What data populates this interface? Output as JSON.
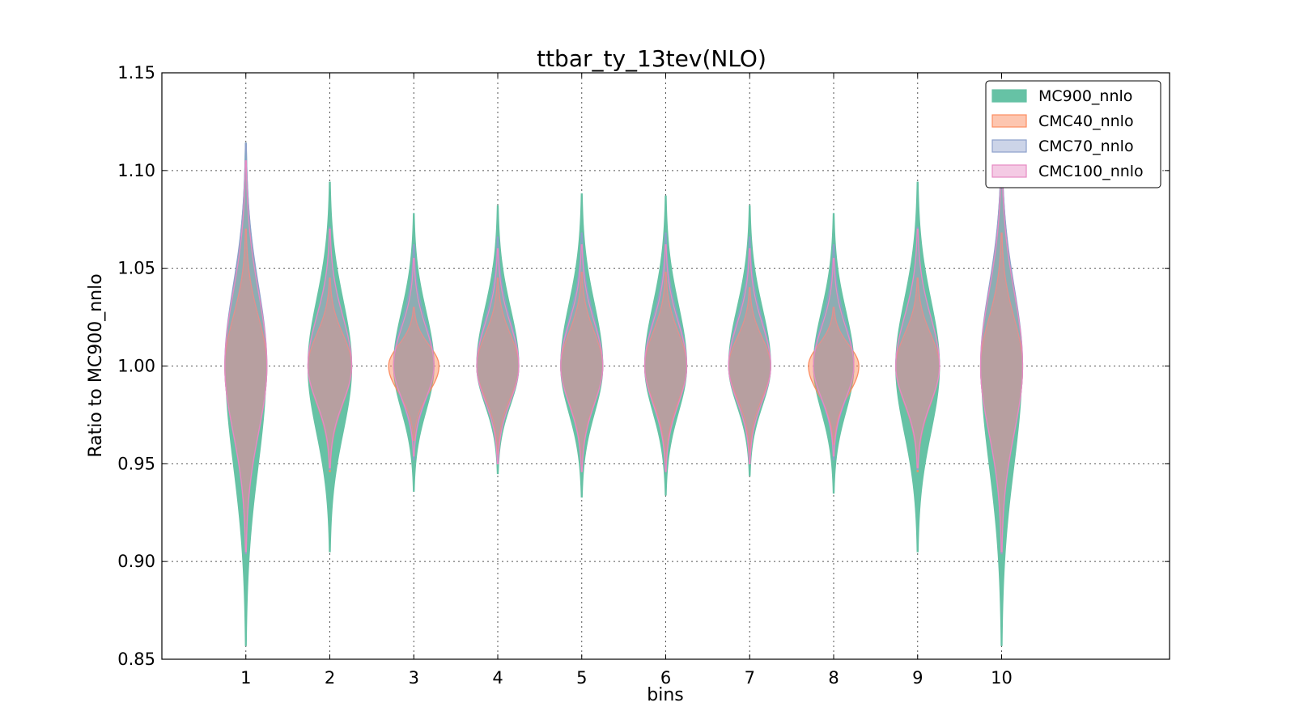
{
  "chart_data": {
    "type": "violin",
    "title": "ttbar_ty_13tev(NLO)",
    "xlabel": "bins",
    "ylabel": "Ratio to MC900_nnlo",
    "categories": [
      "1",
      "2",
      "3",
      "4",
      "5",
      "6",
      "7",
      "8",
      "9",
      "10"
    ],
    "xlim": [
      0,
      12
    ],
    "ylim": [
      0.85,
      1.15
    ],
    "yticks": [
      "0.85",
      "0.90",
      "0.95",
      "1.00",
      "1.05",
      "1.10",
      "1.15"
    ],
    "grid": true,
    "legend_position": "top-right",
    "series": [
      {
        "name": "MC900_nnlo",
        "color": "#66c2a5",
        "alpha": 1.0,
        "stats": [
          {
            "min": 0.857,
            "max": 1.114,
            "w": 0.48
          },
          {
            "min": 0.905,
            "max": 1.094,
            "w": 0.52
          },
          {
            "min": 0.936,
            "max": 1.078,
            "w": 0.48
          },
          {
            "min": 0.945,
            "max": 1.082,
            "w": 0.5
          },
          {
            "min": 0.933,
            "max": 1.088,
            "w": 0.5
          },
          {
            "min": 0.934,
            "max": 1.087,
            "w": 0.5
          },
          {
            "min": 0.944,
            "max": 1.082,
            "w": 0.5
          },
          {
            "min": 0.935,
            "max": 1.078,
            "w": 0.48
          },
          {
            "min": 0.905,
            "max": 1.094,
            "w": 0.52
          },
          {
            "min": 0.857,
            "max": 1.112,
            "w": 0.48
          }
        ]
      },
      {
        "name": "CMC40_nnlo",
        "color": "#fc8d62",
        "alpha": 0.5,
        "stats": [
          {
            "min": 0.904,
            "max": 1.07,
            "w": 0.5
          },
          {
            "min": 0.946,
            "max": 1.045,
            "w": 0.52
          },
          {
            "min": 0.962,
            "max": 1.03,
            "w": 0.6
          },
          {
            "min": 0.955,
            "max": 1.045,
            "w": 0.5
          },
          {
            "min": 0.948,
            "max": 1.048,
            "w": 0.5
          },
          {
            "min": 0.95,
            "max": 1.048,
            "w": 0.5
          },
          {
            "min": 0.955,
            "max": 1.04,
            "w": 0.5
          },
          {
            "min": 0.96,
            "max": 1.03,
            "w": 0.6
          },
          {
            "min": 0.946,
            "max": 1.045,
            "w": 0.52
          },
          {
            "min": 0.904,
            "max": 1.068,
            "w": 0.5
          }
        ]
      },
      {
        "name": "CMC70_nnlo",
        "color": "#8da0cb",
        "alpha": 0.25,
        "stats": [
          {
            "min": 0.904,
            "max": 1.114,
            "w": 0.5
          },
          {
            "min": 0.947,
            "max": 1.071,
            "w": 0.52
          },
          {
            "min": 0.952,
            "max": 1.062,
            "w": 0.48
          },
          {
            "min": 0.95,
            "max": 1.066,
            "w": 0.5
          },
          {
            "min": 0.946,
            "max": 1.068,
            "w": 0.5
          },
          {
            "min": 0.946,
            "max": 1.068,
            "w": 0.5
          },
          {
            "min": 0.95,
            "max": 1.066,
            "w": 0.5
          },
          {
            "min": 0.952,
            "max": 1.062,
            "w": 0.48
          },
          {
            "min": 0.947,
            "max": 1.071,
            "w": 0.52
          },
          {
            "min": 0.904,
            "max": 1.112,
            "w": 0.5
          }
        ]
      },
      {
        "name": "CMC100_nnlo",
        "color": "#e78ac3",
        "alpha": 0.25,
        "stats": [
          {
            "min": 0.905,
            "max": 1.105,
            "w": 0.5
          },
          {
            "min": 0.948,
            "max": 1.07,
            "w": 0.52
          },
          {
            "min": 0.954,
            "max": 1.055,
            "w": 0.48
          },
          {
            "min": 0.95,
            "max": 1.06,
            "w": 0.5
          },
          {
            "min": 0.946,
            "max": 1.062,
            "w": 0.5
          },
          {
            "min": 0.946,
            "max": 1.062,
            "w": 0.5
          },
          {
            "min": 0.95,
            "max": 1.06,
            "w": 0.5
          },
          {
            "min": 0.954,
            "max": 1.055,
            "w": 0.48
          },
          {
            "min": 0.948,
            "max": 1.07,
            "w": 0.52
          },
          {
            "min": 0.905,
            "max": 1.105,
            "w": 0.5
          }
        ]
      }
    ]
  }
}
